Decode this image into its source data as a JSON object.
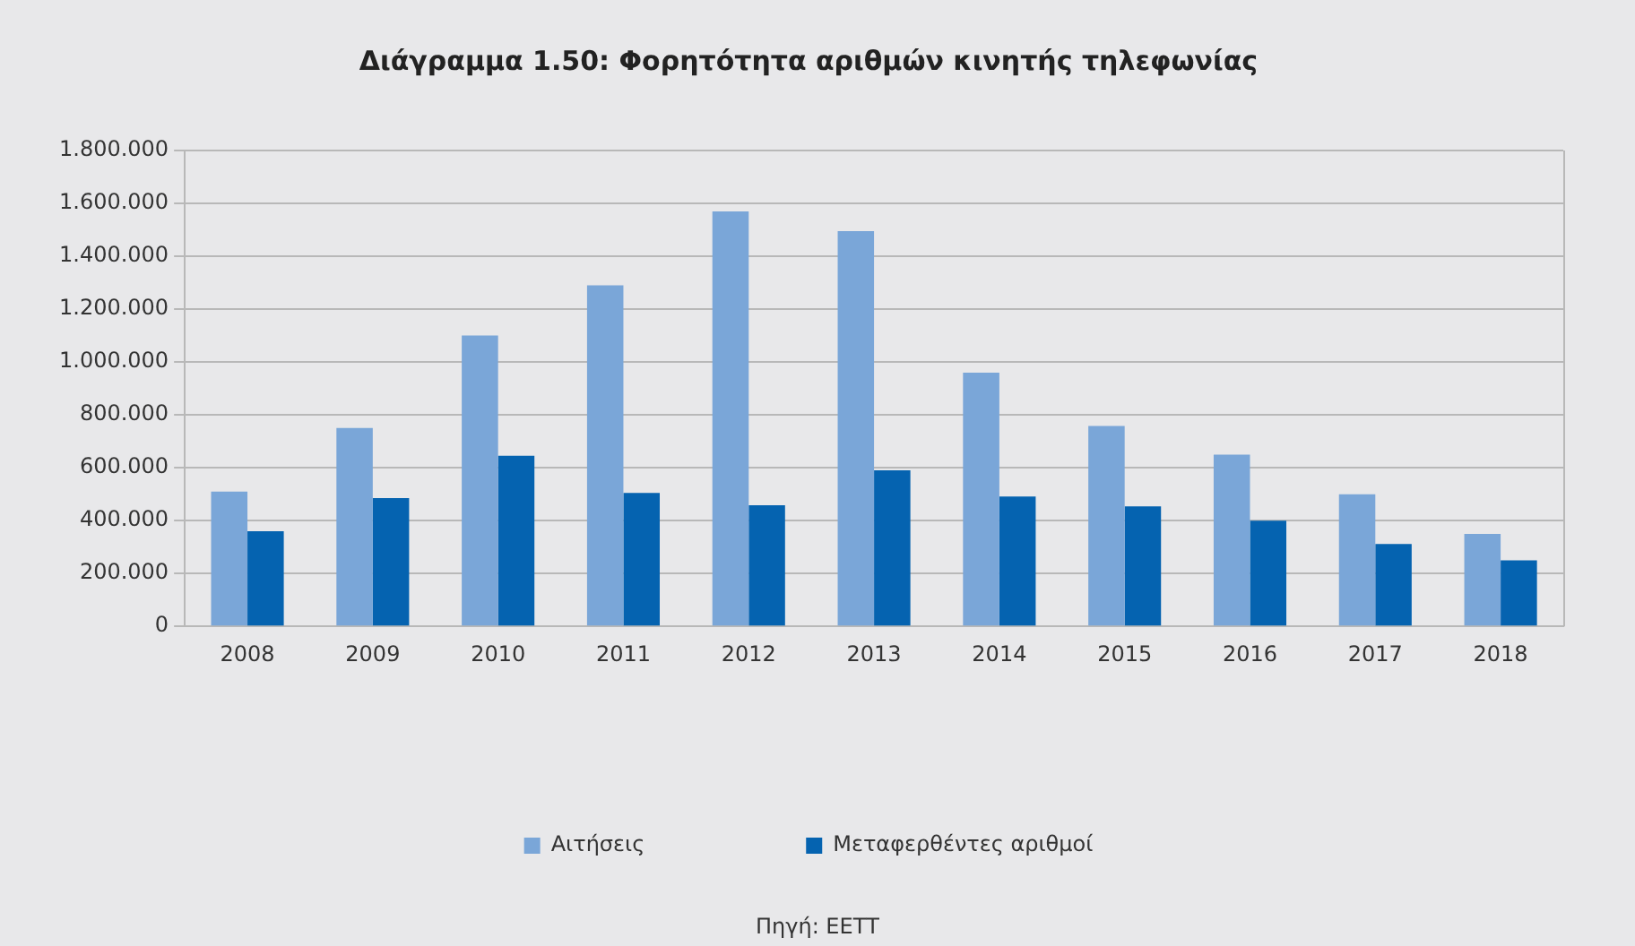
{
  "chart_data": {
    "type": "bar",
    "title": "Διάγραμμα 1.50: Φορητότητα αριθμών κινητής τηλεφωνίας",
    "categories": [
      "2008",
      "2009",
      "2010",
      "2011",
      "2012",
      "2013",
      "2014",
      "2015",
      "2016",
      "2017",
      "2018"
    ],
    "series": [
      {
        "name": "Αιτήσεις",
        "color": "#7aa6d8",
        "values": [
          510000,
          750000,
          1100000,
          1290000,
          1570000,
          1495000,
          960000,
          758000,
          650000,
          500000,
          350000
        ]
      },
      {
        "name": "Μεταφερθέντες αριθμοί",
        "color": "#0563b0",
        "values": [
          360000,
          485000,
          645000,
          505000,
          458000,
          590000,
          491000,
          454000,
          400000,
          312000,
          250000
        ]
      }
    ],
    "ylim": [
      0,
      1800000
    ],
    "yticks": [
      {
        "value": 0,
        "label": "0"
      },
      {
        "value": 200000,
        "label": "200.000"
      },
      {
        "value": 400000,
        "label": "400.000"
      },
      {
        "value": 600000,
        "label": "600.000"
      },
      {
        "value": 800000,
        "label": "800.000"
      },
      {
        "value": 1000000,
        "label": "1.000.000"
      },
      {
        "value": 1200000,
        "label": "1.200.000"
      },
      {
        "value": 1400000,
        "label": "1.400.000"
      },
      {
        "value": 1600000,
        "label": "1.600.000"
      },
      {
        "value": 1800000,
        "label": "1.800.000"
      }
    ],
    "grid": "y",
    "legend": "bottom",
    "annotations": [
      "Πηγή: ΕΕΤΤ"
    ]
  }
}
